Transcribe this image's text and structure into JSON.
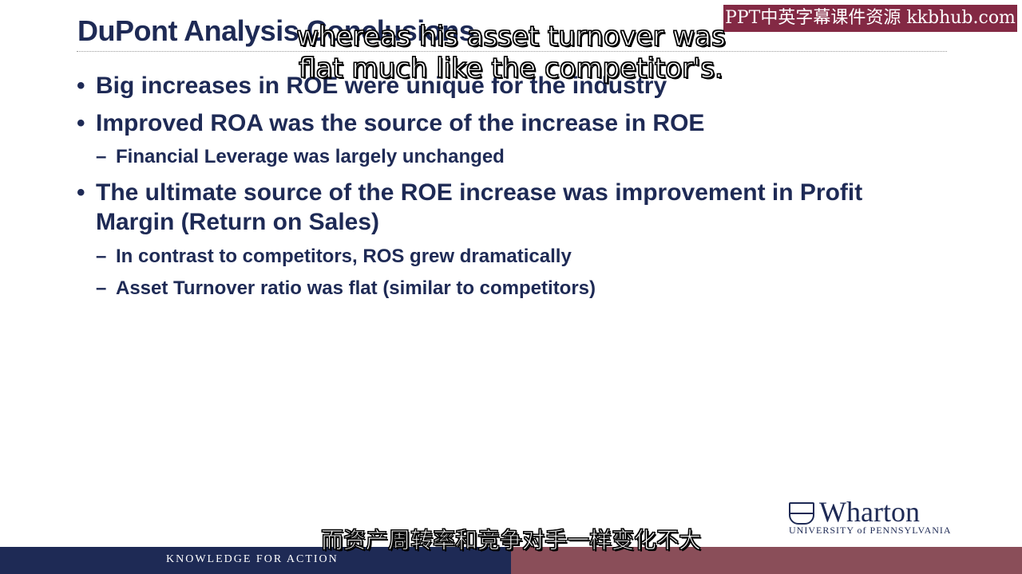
{
  "slide": {
    "title": "DuPont Analysis Conclusions",
    "bullets": [
      "Big increases in ROE were unique for the industry",
      "Improved ROA was the source of the increase in ROE",
      "The ultimate source of the ROE increase was improvement in Profit Margin (Return on Sales)"
    ],
    "sub_bullets": [
      "Financial Leverage was largely unchanged",
      "In contrast to competitors, ROS grew dramatically",
      "Asset Turnover ratio was flat (similar to competitors)"
    ]
  },
  "logo": {
    "name": "Wharton",
    "subtitle": "UNIVERSITY of PENNSYLVANIA",
    "shield_icon": "penn-shield-icon"
  },
  "footer": {
    "tagline": "KNOWLEDGE FOR ACTION",
    "colors": {
      "left": "#1e2a55",
      "right": "#8a4e59"
    }
  },
  "overlay": {
    "watermark": "PPT中英字幕课件资源 kkbhub.com",
    "subtitle_en_line1": "whereas his asset turnover was",
    "subtitle_en_line2": "flat much like the competitor's.",
    "subtitle_zh": "而资产周转率和竞争对手一样变化不大"
  },
  "colors": {
    "text_navy": "#1e2a55",
    "watermark_bg": "#7d1e3b"
  }
}
